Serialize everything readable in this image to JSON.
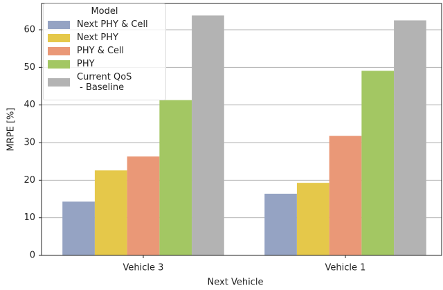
{
  "chart_data": {
    "type": "bar",
    "xlabel": "Next Vehicle",
    "ylabel": "MRPE [%]",
    "legend_title": "Model",
    "categories": [
      "Vehicle 3",
      "Vehicle 1"
    ],
    "series": [
      {
        "name": "Next PHY & Cell",
        "color": "#95a3c3",
        "values": [
          14.3,
          16.4
        ]
      },
      {
        "name": "Next PHY",
        "color": "#e5c84a",
        "values": [
          22.6,
          19.3
        ]
      },
      {
        "name": "PHY & Cell",
        "color": "#ea9877",
        "values": [
          26.3,
          31.8
        ]
      },
      {
        "name": "PHY",
        "color": "#a3c763",
        "values": [
          41.3,
          49.1
        ]
      },
      {
        "name": "Current QoS\n - Baseline",
        "color": "#b3b3b3",
        "values": [
          63.8,
          62.5
        ]
      }
    ],
    "ylim": [
      0,
      67
    ],
    "yticks": [
      0,
      10,
      20,
      30,
      40,
      50,
      60
    ],
    "grid": true,
    "legend": "upper left"
  }
}
